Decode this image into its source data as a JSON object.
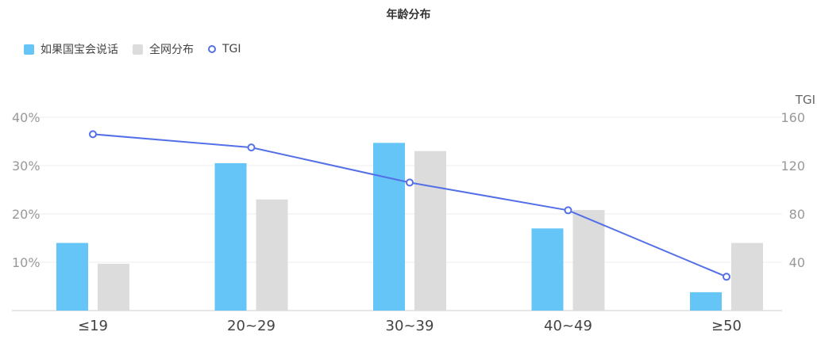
{
  "chart_data": {
    "type": "bar",
    "title": "年龄分布",
    "categories": [
      "≤19",
      "20~29",
      "30~39",
      "40~49",
      "≥50"
    ],
    "series": [
      {
        "name": "如果国宝会说话",
        "type": "bar",
        "values": [
          14,
          30.5,
          34.7,
          17,
          3.8
        ],
        "color": "#66c5f7"
      },
      {
        "name": "全网分布",
        "type": "bar",
        "values": [
          9.7,
          23,
          33,
          20.8,
          14
        ],
        "color": "#dcdcdc"
      },
      {
        "name": "TGI",
        "type": "line",
        "axis": "right",
        "values": [
          146,
          135,
          106,
          83,
          28
        ],
        "color": "#5470e6"
      }
    ],
    "y_left": {
      "ticks": [
        "10%",
        "20%",
        "30%",
        "40%"
      ],
      "ylim": [
        0,
        40
      ]
    },
    "y_right": {
      "label": "TGI",
      "ticks": [
        "40",
        "80",
        "120",
        "160"
      ],
      "ylim": [
        0,
        160
      ]
    },
    "legend_position": "top-left",
    "grid": true
  }
}
